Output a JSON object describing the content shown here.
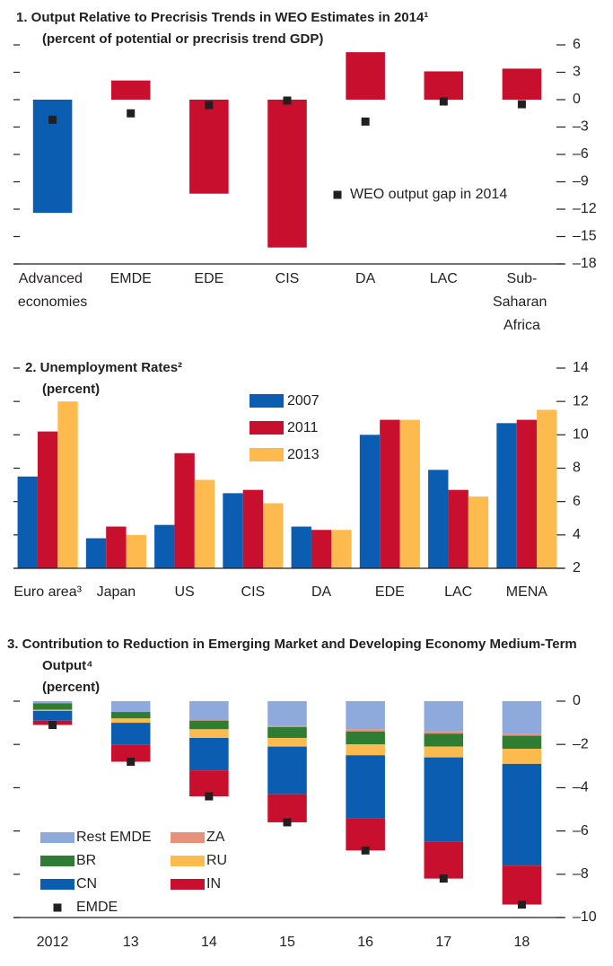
{
  "chart_data": [
    {
      "type": "bar",
      "title": "1. Output Relative to Precrisis Trends in WEO Estimates in 2014¹",
      "subtitle": "(percent of potential or precrisis trend GDP)",
      "categories": [
        "Advanced economies",
        "EMDE",
        "EDE",
        "CIS",
        "DA",
        "LAC",
        "Sub-Saharan Africa"
      ],
      "values": [
        -12.4,
        2.1,
        -10.3,
        -16.2,
        5.2,
        3.1,
        3.4
      ],
      "colors": [
        "#0a5db1",
        "#c8102e",
        "#c8102e",
        "#c8102e",
        "#c8102e",
        "#c8102e",
        "#c8102e"
      ],
      "markers": {
        "name": "WEO output gap in 2014",
        "color": "#231f20",
        "values": [
          -2.2,
          -1.5,
          -0.6,
          -0.1,
          -2.4,
          -0.2,
          -0.5
        ]
      },
      "ylim": [
        -18,
        6
      ],
      "yticks": [
        6,
        3,
        0,
        {
          "value": -3,
          "label": "–3"
        },
        {
          "value": -6,
          "label": "–6"
        },
        {
          "value": -9,
          "label": "–9"
        },
        {
          "value": -12,
          "label": "–12"
        },
        {
          "value": -15,
          "label": "–15"
        },
        {
          "value": -18,
          "label": "–18"
        }
      ],
      "grid": false
    },
    {
      "type": "grouped_bar",
      "title": "2. Unemployment Rates²",
      "subtitle": "(percent)",
      "categories": [
        "Euro area³",
        "Japan",
        "US",
        "CIS",
        "DA",
        "EDE",
        "LAC",
        "MENA"
      ],
      "series": [
        {
          "name": "2007",
          "color": "#0a5db1",
          "values": [
            7.5,
            3.8,
            4.6,
            6.5,
            4.5,
            10.0,
            7.9,
            10.7
          ]
        },
        {
          "name": "2011",
          "color": "#c8102e",
          "values": [
            10.2,
            4.5,
            8.9,
            6.7,
            4.3,
            10.9,
            6.7,
            10.9
          ]
        },
        {
          "name": "2013",
          "color": "#fdbb4f",
          "values": [
            12.0,
            4.0,
            7.3,
            5.9,
            4.3,
            10.9,
            6.3,
            11.5
          ]
        }
      ],
      "ylim": [
        2,
        14
      ],
      "yticks": [
        2,
        4,
        6,
        8,
        10,
        12,
        14
      ],
      "grid": false
    },
    {
      "type": "stacked_bar",
      "title": "3. Contribution to Reduction in Emerging Market and Developing Economy Medium-Term Output⁴",
      "subtitle": "(percent)",
      "categories": [
        "2012",
        "13",
        "14",
        "15",
        "16",
        "17",
        "18"
      ],
      "series": [
        {
          "name": "Rest EMDE",
          "color": "#8ea9db",
          "values": [
            -0.1,
            -0.5,
            -0.85,
            -1.15,
            -1.3,
            -1.4,
            -1.5
          ]
        },
        {
          "name": "ZA",
          "color": "#e8917a",
          "values": [
            0,
            0,
            -0.05,
            -0.05,
            -0.1,
            -0.1,
            -0.1
          ]
        },
        {
          "name": "BR",
          "color": "#2e7d32",
          "values": [
            -0.3,
            -0.3,
            -0.4,
            -0.5,
            -0.6,
            -0.6,
            -0.6
          ]
        },
        {
          "name": "RU",
          "color": "#fdbb4f",
          "values": [
            -0.05,
            -0.2,
            -0.4,
            -0.4,
            -0.5,
            -0.5,
            -0.7
          ]
        },
        {
          "name": "CN",
          "color": "#0a5db1",
          "values": [
            -0.45,
            -1.0,
            -1.5,
            -2.2,
            -2.9,
            -3.9,
            -4.7
          ]
        },
        {
          "name": "IN",
          "color": "#c8102e",
          "values": [
            -0.2,
            -0.8,
            -1.2,
            -1.3,
            -1.5,
            -1.7,
            -1.8
          ]
        }
      ],
      "markers": {
        "name": "EMDE",
        "color": "#231f20",
        "values": [
          -1.1,
          -2.8,
          -4.4,
          -5.6,
          -6.9,
          -8.2,
          -9.4
        ]
      },
      "ylim": [
        -10,
        0
      ],
      "yticks": [
        0,
        {
          "value": -2,
          "label": "–2"
        },
        {
          "value": -4,
          "label": "–4"
        },
        {
          "value": -6,
          "label": "–6"
        },
        {
          "value": -8,
          "label": "–8"
        },
        {
          "value": -10,
          "label": "–10"
        }
      ],
      "grid": false
    }
  ]
}
